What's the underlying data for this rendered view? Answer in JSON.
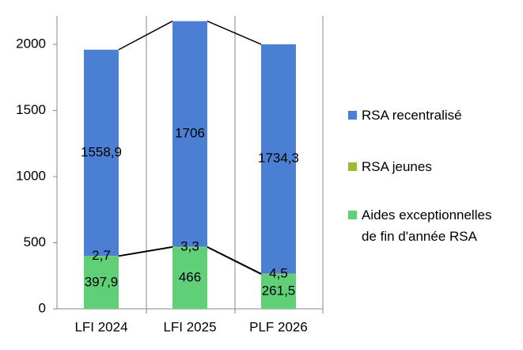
{
  "chart_data": {
    "type": "stacked_bar",
    "categories": [
      "LFI 2024",
      "LFI 2025",
      "PLF 2026"
    ],
    "series": [
      {
        "name": "Aides exceptionnelles de fin d'année RSA",
        "color": "#5fcf78",
        "values": [
          397.9,
          466,
          261.5
        ],
        "value_labels": [
          "397,9",
          "466",
          "261,5"
        ]
      },
      {
        "name": "RSA jeunes",
        "color": "#9bbb37",
        "values": [
          2.7,
          3.3,
          4.5
        ],
        "value_labels": [
          "2,7",
          "3,3",
          "4,5"
        ]
      },
      {
        "name": "RSA recentralisé",
        "color": "#4a7fd4",
        "values": [
          1558.9,
          1706,
          1734.3
        ],
        "value_labels": [
          "1558,9",
          "1706",
          "1734,3"
        ]
      }
    ],
    "ylim": [
      0,
      2200
    ],
    "yticks": [
      0,
      500,
      1000,
      1500,
      2000
    ],
    "series_lines": true
  }
}
